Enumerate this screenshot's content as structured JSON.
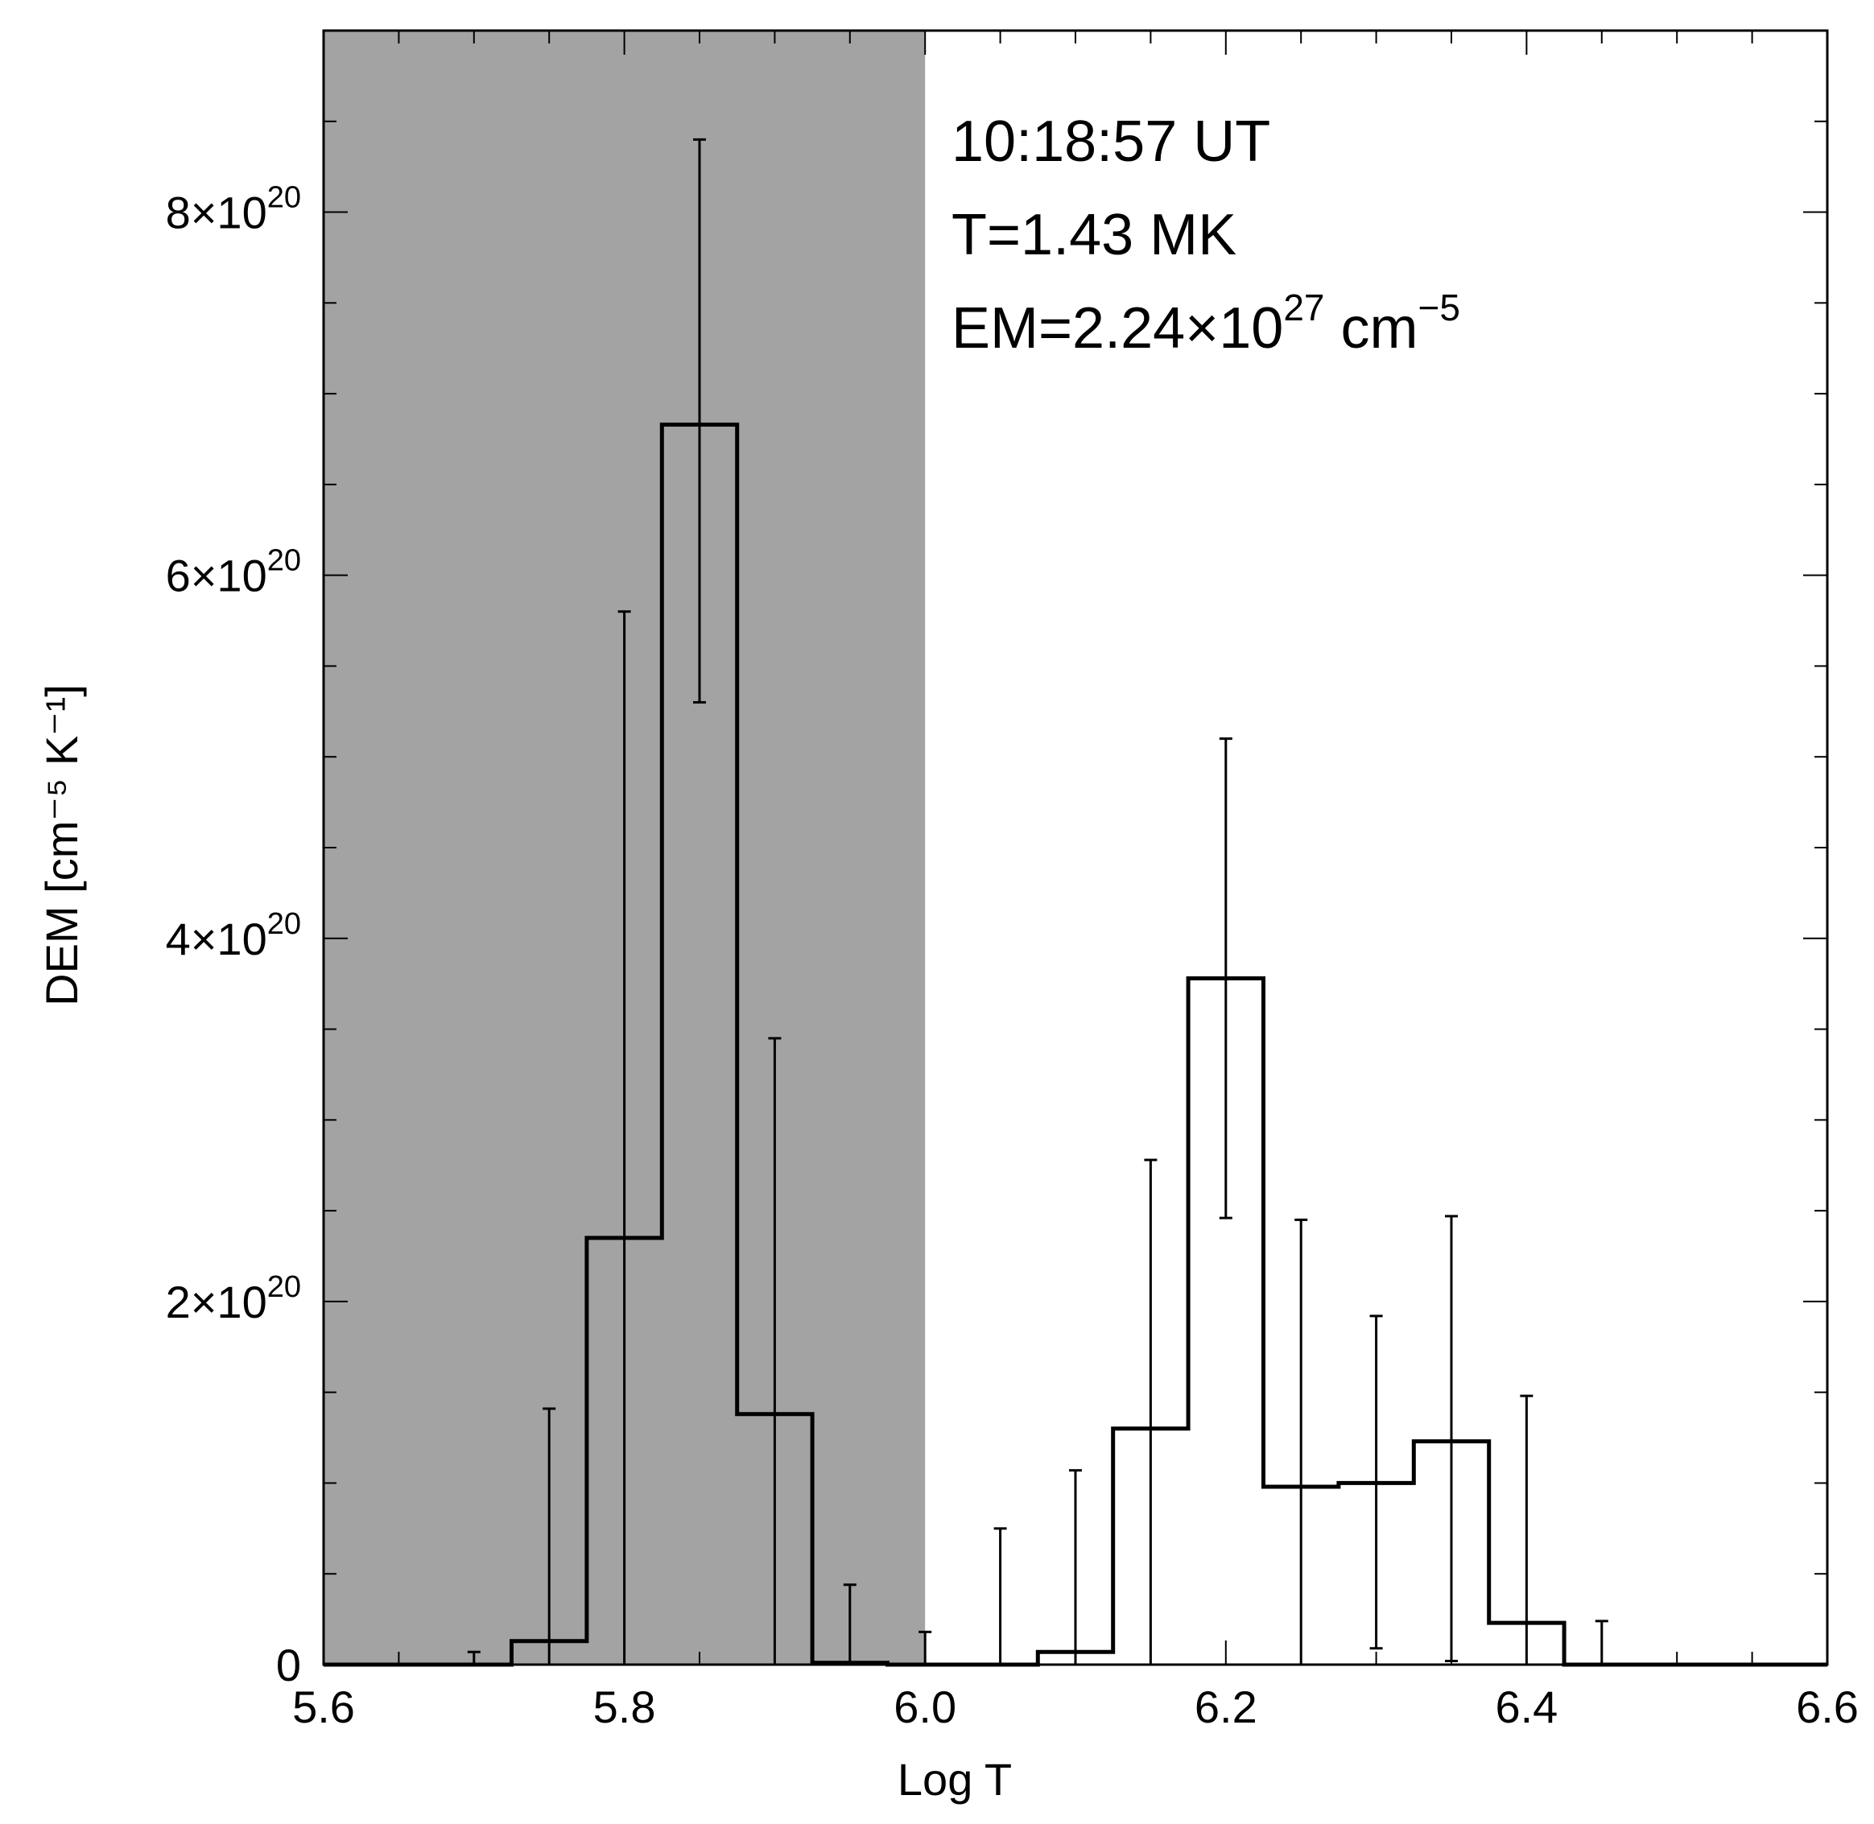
{
  "chart_data": {
    "type": "bar",
    "style": "step-histogram with error bars",
    "xlabel": "Log T",
    "ylabel": "DEM [cm⁻⁵ K⁻¹]",
    "xlim": [
      5.6,
      6.6
    ],
    "ylim": [
      0,
      9e+20
    ],
    "x_ticks": [
      5.6,
      5.8,
      6.0,
      6.2,
      6.4,
      6.6
    ],
    "x_tick_labels": [
      "5.6",
      "5.8",
      "6.0",
      "6.2",
      "6.4",
      "6.6"
    ],
    "y_ticks": [
      0,
      2e+20,
      4e+20,
      6e+20,
      8e+20
    ],
    "y_tick_labels": [
      {
        "base": "0",
        "exp": ""
      },
      {
        "base": "2×10",
        "exp": "20"
      },
      {
        "base": "4×10",
        "exp": "20"
      },
      {
        "base": "6×10",
        "exp": "20"
      },
      {
        "base": "8×10",
        "exp": "20"
      }
    ],
    "shaded_region": {
      "x": [
        5.6,
        6.0
      ],
      "color": "#a3a3a3"
    },
    "bin_width": 0.05,
    "series": [
      {
        "centers": [
          5.6,
          5.65,
          5.7,
          5.75,
          5.8,
          5.85,
          5.9,
          5.95,
          6.0,
          6.05,
          6.1,
          6.15,
          6.2,
          6.25,
          6.3,
          6.35,
          6.4,
          6.45,
          6.5,
          6.55,
          6.6
        ],
        "values": [
          0,
          0,
          0,
          1.3e+19,
          2.35e+20,
          6.83e+20,
          1.38e+20,
          1e+18,
          0,
          0,
          7e+18,
          1.3e+20,
          3.78e+20,
          9.8e+19,
          1e+20,
          1.23e+20,
          2.3e+19,
          0,
          0,
          0,
          0
        ],
        "err_low": [
          0,
          0,
          0,
          0,
          0,
          5.3e+20,
          0,
          0,
          0,
          0,
          0,
          0,
          2.46e+20,
          0,
          9e+18,
          2e+18,
          0,
          0,
          0,
          0,
          0
        ],
        "err_high": [
          0,
          0,
          7e+18,
          1.41e+20,
          5.8e+20,
          8.4e+20,
          3.45e+20,
          4.4e+19,
          1.8e+19,
          7.5e+19,
          1.07e+20,
          2.78e+20,
          5.1e+20,
          2.45e+20,
          1.92e+20,
          2.47e+20,
          1.48e+20,
          2.4e+19,
          0,
          0,
          0
        ]
      }
    ],
    "annotations": [
      {
        "text": "10:18:57 UT"
      },
      {
        "text": "T=1.43 MK"
      },
      {
        "base": "EM=2.24×10",
        "exp": "27",
        "tail": " cm",
        "tail_exp": "−5"
      }
    ]
  }
}
